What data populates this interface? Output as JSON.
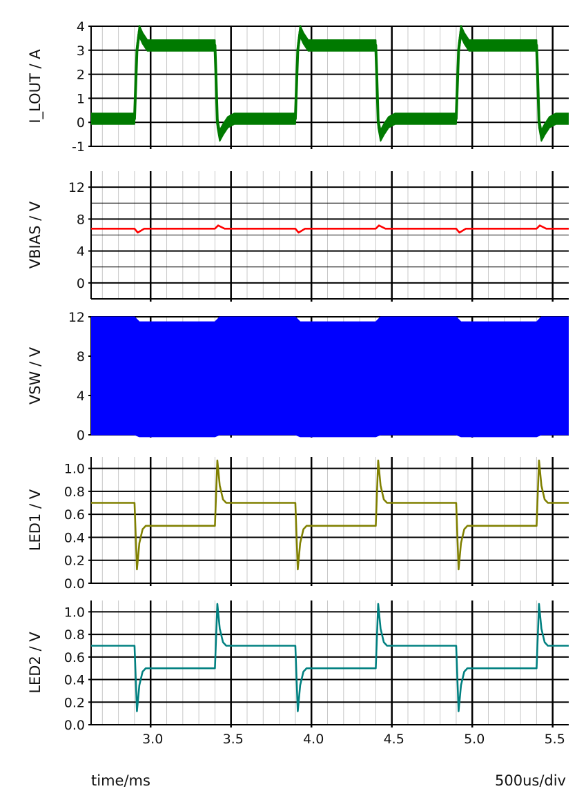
{
  "footer": {
    "x_axis_label": "time/ms",
    "timebase": "500us/div"
  },
  "chart_data": [
    {
      "id": "i_lout",
      "type": "line",
      "ylabel": "I_LOUT / A",
      "color": "#007a00",
      "ylim": [
        -1,
        4
      ],
      "yticks": [
        -1,
        0,
        1,
        2,
        3,
        4
      ],
      "ytick_labels": [
        "-1",
        "0",
        "1",
        "2",
        "3",
        "4"
      ],
      "xlim": [
        2.63,
        5.6
      ],
      "xticks": [
        3.0,
        3.5,
        4.0,
        4.5,
        5.0,
        5.5
      ],
      "xtick_labels": [],
      "grid": true,
      "series": [
        {
          "x": [
            2.63,
            2.9,
            2.915,
            2.93,
            2.95,
            2.98,
            3.02,
            3.4,
            3.405,
            3.415,
            3.43,
            3.45,
            3.48,
            3.52,
            3.9,
            3.915,
            3.93,
            3.95,
            3.98,
            4.02,
            4.4,
            4.405,
            4.415,
            4.43,
            4.45,
            4.48,
            4.52,
            4.9,
            4.915,
            4.93,
            4.95,
            4.98,
            5.02,
            5.4,
            5.405,
            5.415,
            5.43,
            5.45,
            5.48,
            5.52,
            5.6
          ],
          "y": [
            0.15,
            0.15,
            3.0,
            3.8,
            3.5,
            3.2,
            3.2,
            3.2,
            2.2,
            0.0,
            -0.55,
            -0.3,
            0.0,
            0.15,
            0.15,
            3.0,
            3.8,
            3.5,
            3.2,
            3.2,
            3.2,
            2.2,
            0.0,
            -0.55,
            -0.3,
            0.0,
            0.15,
            0.15,
            3.0,
            3.8,
            3.5,
            3.2,
            3.2,
            3.2,
            2.2,
            0.0,
            -0.55,
            -0.3,
            0.0,
            0.15,
            0.15
          ],
          "ripple": 0.45
        }
      ]
    },
    {
      "id": "vbias",
      "type": "line",
      "ylabel": "VBIAS / V",
      "color": "#ff0000",
      "ylim": [
        -2,
        14
      ],
      "yticks": [
        0,
        4,
        8,
        12
      ],
      "ytick_labels": [
        "0",
        "4",
        "8",
        "12"
      ],
      "xlim": [
        2.63,
        5.6
      ],
      "xticks": [
        3.0,
        3.5,
        4.0,
        4.5,
        5.0,
        5.5
      ],
      "xtick_labels": [],
      "grid": true,
      "series": [
        {
          "x": [
            2.63,
            2.9,
            2.92,
            2.96,
            3.0,
            3.4,
            3.42,
            3.46,
            3.5,
            3.9,
            3.92,
            3.96,
            4.0,
            4.4,
            4.42,
            4.46,
            4.5,
            4.9,
            4.92,
            4.96,
            5.0,
            5.4,
            5.42,
            5.46,
            5.5,
            5.6
          ],
          "y": [
            6.8,
            6.8,
            6.3,
            6.8,
            6.8,
            6.8,
            7.2,
            6.8,
            6.8,
            6.8,
            6.3,
            6.8,
            6.8,
            6.8,
            7.2,
            6.8,
            6.8,
            6.8,
            6.3,
            6.8,
            6.8,
            6.8,
            7.2,
            6.8,
            6.8,
            6.8
          ]
        }
      ]
    },
    {
      "id": "vsw",
      "type": "area",
      "ylabel": "VSW / V",
      "color": "#0000ff",
      "ylim": [
        0,
        12
      ],
      "yticks": [
        0,
        4,
        8,
        12
      ],
      "ytick_labels": [
        "0",
        "4",
        "8",
        "12"
      ],
      "xlim": [
        2.63,
        5.6
      ],
      "xticks": [
        3.0,
        3.5,
        4.0,
        4.5,
        5.0,
        5.5
      ],
      "xtick_labels": [],
      "grid": true,
      "series": [
        {
          "x": [
            2.63,
            2.9,
            2.93,
            3.4,
            3.43,
            3.9,
            3.93,
            4.4,
            4.43,
            4.9,
            4.93,
            5.4,
            5.43,
            5.6
          ],
          "upper": [
            12.0,
            12.0,
            11.5,
            11.5,
            12.0,
            12.0,
            11.5,
            11.5,
            12.0,
            12.0,
            11.5,
            11.5,
            12.0,
            12.0
          ],
          "lower": [
            0.0,
            0.0,
            -0.2,
            -0.2,
            0.0,
            0.0,
            -0.2,
            -0.2,
            0.0,
            0.0,
            -0.2,
            -0.2,
            0.0,
            0.0
          ]
        }
      ]
    },
    {
      "id": "led1",
      "type": "line",
      "ylabel": "LED1 / V",
      "color": "#808000",
      "ylim": [
        0,
        1.1
      ],
      "yticks": [
        0.0,
        0.2,
        0.4,
        0.6,
        0.8,
        1.0
      ],
      "ytick_labels": [
        "0.0",
        "0.2",
        "0.4",
        "0.6",
        "0.8",
        "1.0"
      ],
      "xlim": [
        2.63,
        5.6
      ],
      "xticks": [
        3.0,
        3.5,
        4.0,
        4.5,
        5.0,
        5.5
      ],
      "xtick_labels": [],
      "grid": true,
      "series": [
        {
          "x": [
            2.63,
            2.9,
            2.915,
            2.93,
            2.95,
            2.97,
            3.0,
            3.4,
            3.415,
            3.43,
            3.45,
            3.47,
            3.5,
            3.9,
            3.915,
            3.93,
            3.95,
            3.97,
            4.0,
            4.4,
            4.415,
            4.43,
            4.45,
            4.47,
            4.5,
            4.9,
            4.915,
            4.93,
            4.95,
            4.97,
            5.0,
            5.4,
            5.415,
            5.43,
            5.45,
            5.47,
            5.5,
            5.6
          ],
          "y": [
            0.7,
            0.7,
            0.12,
            0.35,
            0.47,
            0.5,
            0.5,
            0.5,
            1.07,
            0.85,
            0.73,
            0.7,
            0.7,
            0.7,
            0.12,
            0.35,
            0.47,
            0.5,
            0.5,
            0.5,
            1.07,
            0.85,
            0.73,
            0.7,
            0.7,
            0.7,
            0.12,
            0.35,
            0.47,
            0.5,
            0.5,
            0.5,
            1.07,
            0.85,
            0.73,
            0.7,
            0.7,
            0.7
          ]
        }
      ]
    },
    {
      "id": "led2",
      "type": "line",
      "ylabel": "LED2 / V",
      "color": "#008080",
      "ylim": [
        0,
        1.1
      ],
      "yticks": [
        0.0,
        0.2,
        0.4,
        0.6,
        0.8,
        1.0
      ],
      "ytick_labels": [
        "0.0",
        "0.2",
        "0.4",
        "0.6",
        "0.8",
        "1.0"
      ],
      "xlim": [
        2.63,
        5.6
      ],
      "xticks": [
        3.0,
        3.5,
        4.0,
        4.5,
        5.0,
        5.5
      ],
      "xtick_labels": [
        "3.0",
        "3.5",
        "4.0",
        "4.5",
        "5.0",
        "5.5"
      ],
      "grid": true,
      "series": [
        {
          "x": [
            2.63,
            2.9,
            2.915,
            2.93,
            2.95,
            2.97,
            3.0,
            3.4,
            3.415,
            3.43,
            3.45,
            3.47,
            3.5,
            3.9,
            3.915,
            3.93,
            3.95,
            3.97,
            4.0,
            4.4,
            4.415,
            4.43,
            4.45,
            4.47,
            4.5,
            4.9,
            4.915,
            4.93,
            4.95,
            4.97,
            5.0,
            5.4,
            5.415,
            5.43,
            5.45,
            5.47,
            5.5,
            5.6
          ],
          "y": [
            0.7,
            0.7,
            0.12,
            0.35,
            0.47,
            0.5,
            0.5,
            0.5,
            1.07,
            0.85,
            0.73,
            0.7,
            0.7,
            0.7,
            0.12,
            0.35,
            0.47,
            0.5,
            0.5,
            0.5,
            1.07,
            0.85,
            0.73,
            0.7,
            0.7,
            0.7,
            0.12,
            0.35,
            0.47,
            0.5,
            0.5,
            0.5,
            1.07,
            0.85,
            0.73,
            0.7,
            0.7,
            0.7
          ]
        }
      ]
    }
  ]
}
